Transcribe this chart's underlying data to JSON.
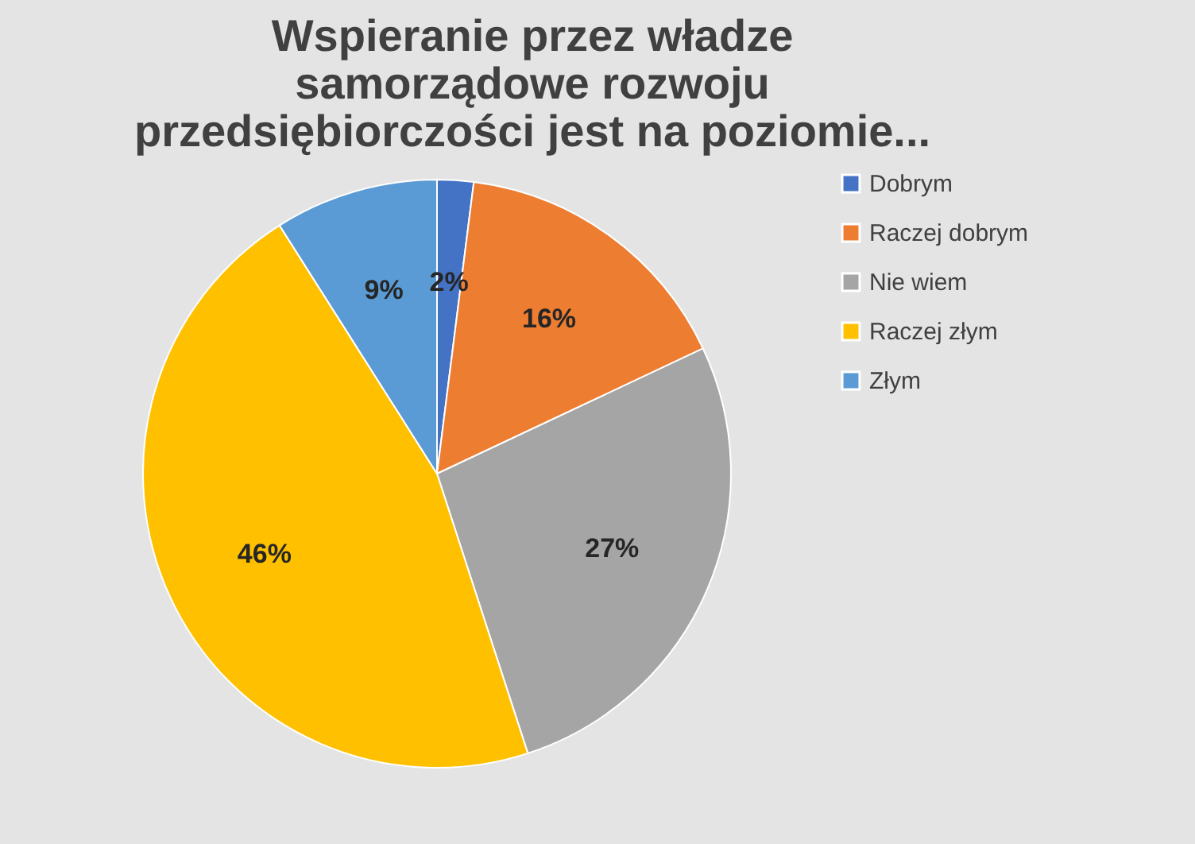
{
  "chart_data": {
    "type": "pie",
    "title": "Wspieranie przez władze\nsamorządowe rozwoju\nprzedsiębiorczości jest na poziomie...",
    "categories": [
      "Dobrym",
      "Raczej dobrym",
      "Nie wiem",
      "Raczej złym",
      "Złym"
    ],
    "values": [
      2,
      16,
      27,
      46,
      9
    ],
    "colors": [
      "#4472c4",
      "#ed7d31",
      "#a5a5a5",
      "#ffc000",
      "#5b9bd5"
    ],
    "value_labels": [
      "2%",
      "16%",
      "27%",
      "46%",
      "9%"
    ],
    "legend": "right"
  }
}
